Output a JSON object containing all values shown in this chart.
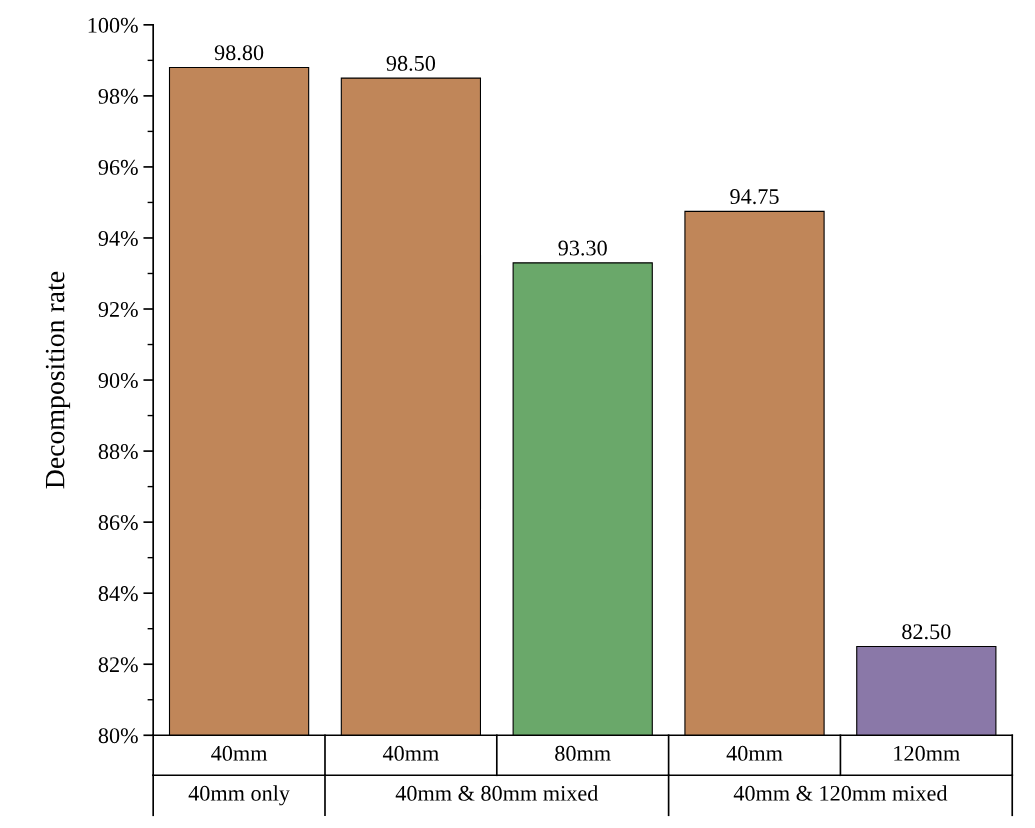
{
  "chart_data": {
    "type": "bar",
    "ylabel": "Decomposition rate",
    "categories": [
      "40mm",
      "40mm",
      "80mm",
      "40mm",
      "120mm"
    ],
    "values": [
      98.8,
      98.5,
      93.3,
      94.75,
      82.5
    ],
    "value_labels": [
      "98.80",
      "98.50",
      "93.30",
      "94.75",
      "82.50"
    ],
    "colors": [
      "#c08659",
      "#c08659",
      "#6aa86a",
      "#c08659",
      "#8a78a8"
    ],
    "ylim": [
      80,
      100
    ],
    "yticks": [
      {
        "value": 80,
        "label": "80%"
      },
      {
        "value": 81,
        "label": null
      },
      {
        "value": 82,
        "label": "82%"
      },
      {
        "value": 83,
        "label": null
      },
      {
        "value": 84,
        "label": "84%"
      },
      {
        "value": 85,
        "label": null
      },
      {
        "value": 86,
        "label": "86%"
      },
      {
        "value": 87,
        "label": null
      },
      {
        "value": 88,
        "label": "88%"
      },
      {
        "value": 89,
        "label": null
      },
      {
        "value": 90,
        "label": "90%"
      },
      {
        "value": 91,
        "label": null
      },
      {
        "value": 92,
        "label": "92%"
      },
      {
        "value": 93,
        "label": null
      },
      {
        "value": 94,
        "label": "94%"
      },
      {
        "value": 95,
        "label": null
      },
      {
        "value": 96,
        "label": "96%"
      },
      {
        "value": 97,
        "label": null
      },
      {
        "value": 98,
        "label": "98%"
      },
      {
        "value": 99,
        "label": null
      },
      {
        "value": 100,
        "label": "100%"
      }
    ],
    "annotations": [
      "40mm only",
      "40mm & 80mm mixed",
      "40mm & 120mm mixed"
    ],
    "grid": false,
    "legend": false
  }
}
